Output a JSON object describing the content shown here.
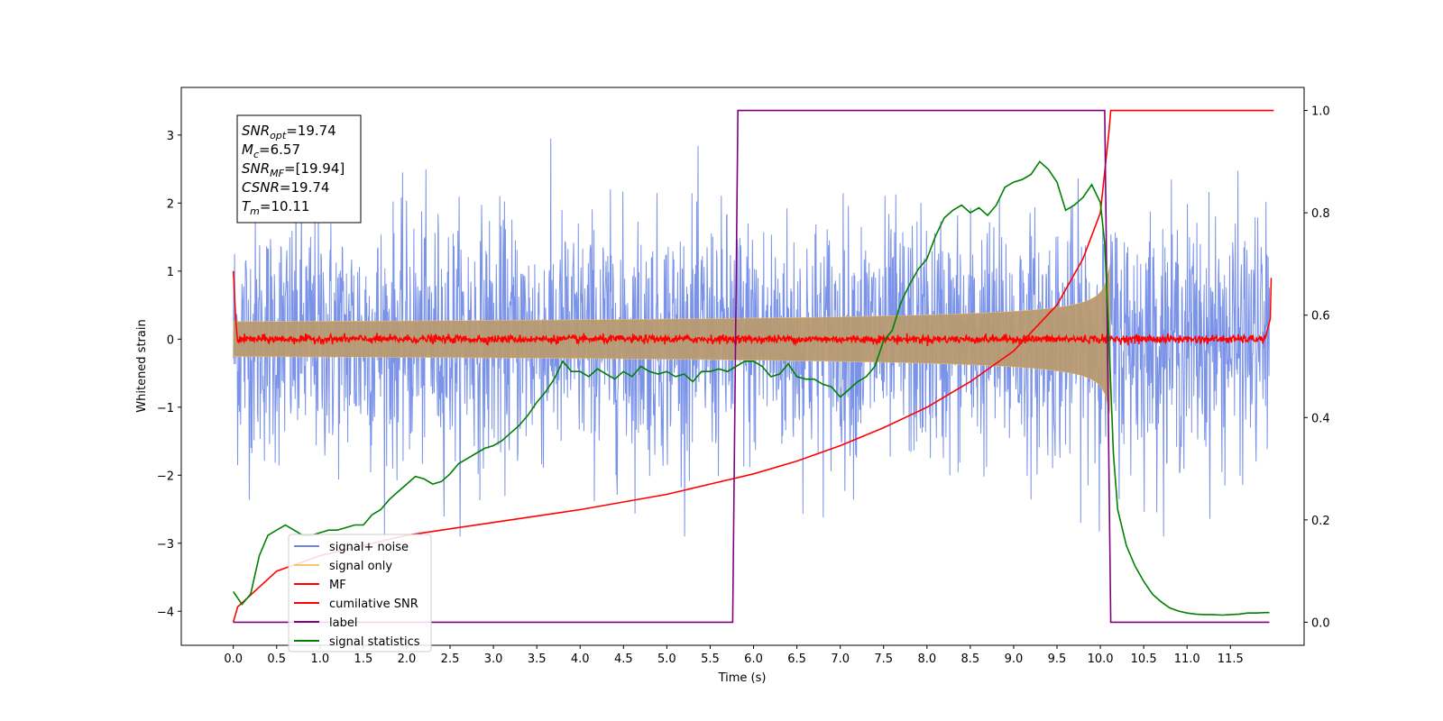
{
  "chart_data": {
    "type": "line",
    "xlabel": "Time (s)",
    "ylabel": "Whitened strain",
    "xlim": [
      -0.6,
      12.35
    ],
    "ylim": [
      -4.5,
      3.7
    ],
    "y2lim": [
      -0.045,
      1.045
    ],
    "xticks": [
      "0.0",
      "0.5",
      "1.0",
      "1.5",
      "2.0",
      "2.5",
      "3.0",
      "3.5",
      "4.0",
      "4.5",
      "5.0",
      "5.5",
      "6.0",
      "6.5",
      "7.0",
      "7.5",
      "8.0",
      "8.5",
      "9.0",
      "9.5",
      "10.0",
      "10.5",
      "11.0",
      "11.5"
    ],
    "yticks": [
      "3",
      "2",
      "1",
      "0",
      "−1",
      "−2",
      "−3",
      "−4"
    ],
    "y2ticks": [
      "1.0",
      "0.8",
      "0.6",
      "0.4",
      "0.2",
      "0.0"
    ],
    "grid": false,
    "legend_position": "lower-left",
    "annotation": {
      "lines": [
        {
          "name": "SNR",
          "sub": "opt",
          "value": "=19.74"
        },
        {
          "name": "M",
          "sub": "c",
          "value": "=6.57"
        },
        {
          "name": "SNR",
          "sub": "MF",
          "value": "=[19.94]"
        },
        {
          "name": "CSNR",
          "sub": "",
          "value": "=19.74"
        },
        {
          "name": "T",
          "sub": "m",
          "value": "=10.11"
        }
      ]
    },
    "series": [
      {
        "name": "signal+ noise",
        "color": "#6b87e6",
        "axis": "left",
        "description_values": {
          "noise_sigma": 0.9,
          "peak_range": [
            -2.9,
            3.3
          ]
        }
      },
      {
        "name": "signal only",
        "color": "#f5c86e",
        "axis": "left",
        "envelope": {
          "t_start": 0.0,
          "t_merger": 10.11,
          "amplitude_start": 0.05,
          "amplitude_peak": 1.2
        }
      },
      {
        "name": "MF",
        "color": "#ff0000",
        "axis": "left",
        "baseline": 0.0,
        "spread": 0.06,
        "edge_values": [
          1.0,
          0.9
        ]
      },
      {
        "name": "cumilative SNR",
        "color": "#ff0000",
        "axis": "right",
        "points": [
          [
            0.0,
            0.0
          ],
          [
            0.05,
            0.03
          ],
          [
            0.5,
            0.1
          ],
          [
            1.0,
            0.13
          ],
          [
            2.0,
            0.17
          ],
          [
            3.0,
            0.195
          ],
          [
            4.0,
            0.22
          ],
          [
            5.0,
            0.25
          ],
          [
            5.5,
            0.27
          ],
          [
            6.0,
            0.29
          ],
          [
            6.5,
            0.315
          ],
          [
            7.0,
            0.345
          ],
          [
            7.5,
            0.38
          ],
          [
            8.0,
            0.42
          ],
          [
            8.5,
            0.47
          ],
          [
            9.0,
            0.53
          ],
          [
            9.5,
            0.62
          ],
          [
            9.8,
            0.71
          ],
          [
            10.0,
            0.8
          ],
          [
            10.1,
            0.96
          ],
          [
            10.12,
            1.0
          ],
          [
            12.0,
            1.0
          ]
        ]
      },
      {
        "name": "label",
        "color": "#800080",
        "axis": "right",
        "points": [
          [
            0.0,
            0.0
          ],
          [
            5.76,
            0.0
          ],
          [
            5.82,
            1.0
          ],
          [
            10.05,
            1.0
          ],
          [
            10.12,
            0.0
          ],
          [
            11.95,
            0.0
          ]
        ]
      },
      {
        "name": "signal statistics",
        "color": "#008000",
        "axis": "right",
        "points": [
          [
            0.0,
            0.06
          ],
          [
            0.1,
            0.035
          ],
          [
            0.2,
            0.055
          ],
          [
            0.3,
            0.13
          ],
          [
            0.4,
            0.17
          ],
          [
            0.5,
            0.18
          ],
          [
            0.6,
            0.19
          ],
          [
            0.7,
            0.18
          ],
          [
            0.8,
            0.17
          ],
          [
            0.9,
            0.17
          ],
          [
            1.0,
            0.175
          ],
          [
            1.1,
            0.18
          ],
          [
            1.2,
            0.18
          ],
          [
            1.3,
            0.185
          ],
          [
            1.4,
            0.19
          ],
          [
            1.5,
            0.19
          ],
          [
            1.6,
            0.21
          ],
          [
            1.7,
            0.22
          ],
          [
            1.8,
            0.24
          ],
          [
            1.9,
            0.255
          ],
          [
            2.0,
            0.27
          ],
          [
            2.1,
            0.285
          ],
          [
            2.2,
            0.28
          ],
          [
            2.3,
            0.27
          ],
          [
            2.4,
            0.275
          ],
          [
            2.5,
            0.29
          ],
          [
            2.6,
            0.31
          ],
          [
            2.7,
            0.32
          ],
          [
            2.8,
            0.33
          ],
          [
            2.9,
            0.34
          ],
          [
            3.0,
            0.345
          ],
          [
            3.1,
            0.355
          ],
          [
            3.2,
            0.37
          ],
          [
            3.3,
            0.385
          ],
          [
            3.4,
            0.405
          ],
          [
            3.5,
            0.43
          ],
          [
            3.6,
            0.45
          ],
          [
            3.7,
            0.475
          ],
          [
            3.8,
            0.51
          ],
          [
            3.9,
            0.49
          ],
          [
            4.0,
            0.49
          ],
          [
            4.1,
            0.48
          ],
          [
            4.2,
            0.495
          ],
          [
            4.3,
            0.485
          ],
          [
            4.4,
            0.475
          ],
          [
            4.5,
            0.49
          ],
          [
            4.6,
            0.48
          ],
          [
            4.7,
            0.5
          ],
          [
            4.8,
            0.49
          ],
          [
            4.9,
            0.485
          ],
          [
            5.0,
            0.49
          ],
          [
            5.1,
            0.48
          ],
          [
            5.2,
            0.485
          ],
          [
            5.3,
            0.47
          ],
          [
            5.4,
            0.49
          ],
          [
            5.5,
            0.49
          ],
          [
            5.6,
            0.495
          ],
          [
            5.7,
            0.49
          ],
          [
            5.8,
            0.5
          ],
          [
            5.9,
            0.51
          ],
          [
            6.0,
            0.51
          ],
          [
            6.1,
            0.5
          ],
          [
            6.2,
            0.48
          ],
          [
            6.3,
            0.485
          ],
          [
            6.4,
            0.505
          ],
          [
            6.5,
            0.48
          ],
          [
            6.6,
            0.475
          ],
          [
            6.7,
            0.475
          ],
          [
            6.8,
            0.465
          ],
          [
            6.9,
            0.46
          ],
          [
            7.0,
            0.44
          ],
          [
            7.1,
            0.455
          ],
          [
            7.2,
            0.47
          ],
          [
            7.3,
            0.48
          ],
          [
            7.4,
            0.5
          ],
          [
            7.5,
            0.55
          ],
          [
            7.6,
            0.57
          ],
          [
            7.7,
            0.625
          ],
          [
            7.8,
            0.66
          ],
          [
            7.9,
            0.69
          ],
          [
            8.0,
            0.71
          ],
          [
            8.1,
            0.755
          ],
          [
            8.2,
            0.79
          ],
          [
            8.3,
            0.805
          ],
          [
            8.4,
            0.815
          ],
          [
            8.5,
            0.8
          ],
          [
            8.6,
            0.81
          ],
          [
            8.7,
            0.795
          ],
          [
            8.8,
            0.815
          ],
          [
            8.9,
            0.85
          ],
          [
            9.0,
            0.86
          ],
          [
            9.1,
            0.865
          ],
          [
            9.2,
            0.875
          ],
          [
            9.3,
            0.9
          ],
          [
            9.4,
            0.885
          ],
          [
            9.5,
            0.86
          ],
          [
            9.6,
            0.805
          ],
          [
            9.7,
            0.815
          ],
          [
            9.8,
            0.83
          ],
          [
            9.9,
            0.855
          ],
          [
            10.0,
            0.82
          ],
          [
            10.05,
            0.74
          ],
          [
            10.1,
            0.55
          ],
          [
            10.15,
            0.33
          ],
          [
            10.2,
            0.22
          ],
          [
            10.3,
            0.15
          ],
          [
            10.4,
            0.11
          ],
          [
            10.5,
            0.08
          ],
          [
            10.6,
            0.055
          ],
          [
            10.7,
            0.04
          ],
          [
            10.8,
            0.028
          ],
          [
            10.9,
            0.022
          ],
          [
            11.0,
            0.018
          ],
          [
            11.1,
            0.016
          ],
          [
            11.2,
            0.015
          ],
          [
            11.3,
            0.015
          ],
          [
            11.4,
            0.014
          ],
          [
            11.5,
            0.015
          ],
          [
            11.6,
            0.016
          ],
          [
            11.7,
            0.018
          ],
          [
            11.8,
            0.018
          ],
          [
            11.9,
            0.019
          ],
          [
            11.95,
            0.019
          ]
        ]
      }
    ]
  }
}
